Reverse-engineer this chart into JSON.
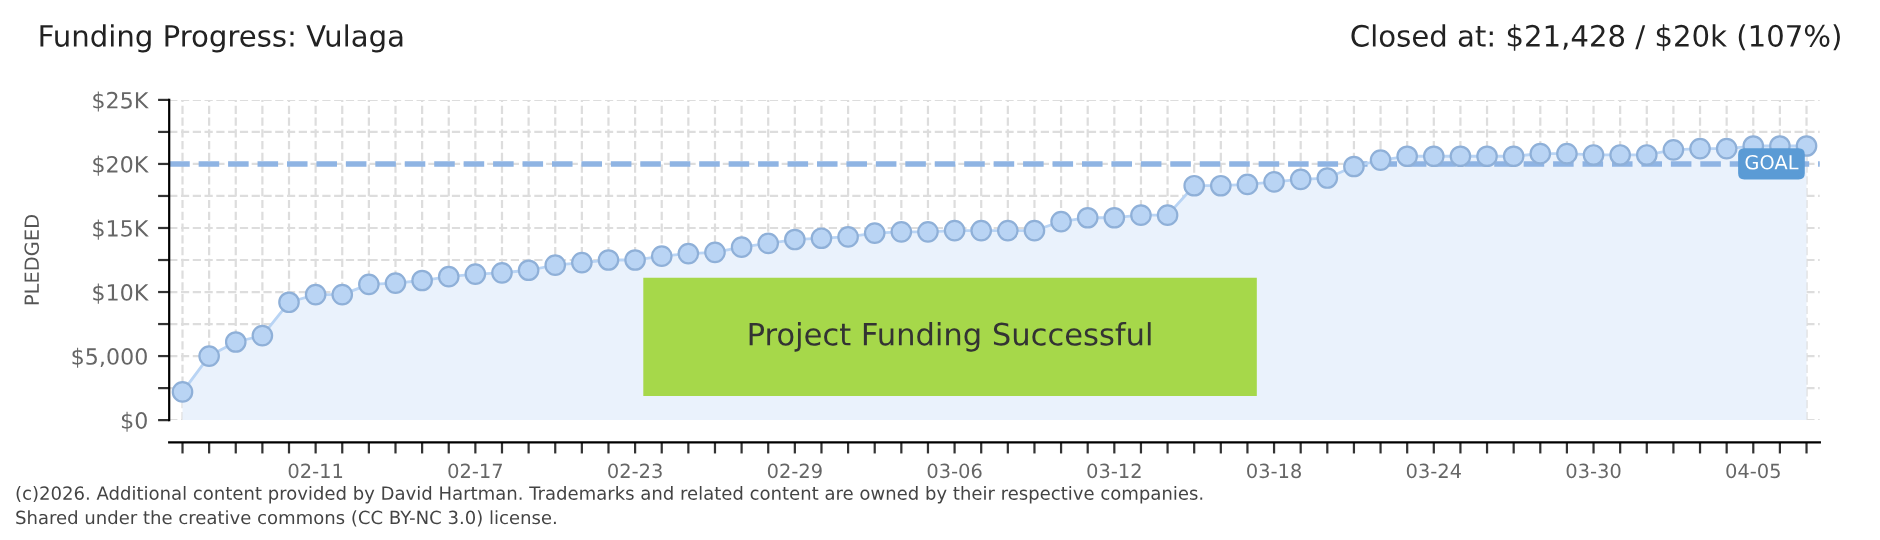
{
  "chart_data": {
    "type": "area",
    "title": "Funding Progress: Vulaga",
    "subtitle": "Closed at: $21,428 / $20k (107%)",
    "ylabel": "PLEDGED",
    "categories": [
      null,
      null,
      null,
      null,
      null,
      "02-11",
      null,
      null,
      null,
      null,
      null,
      "02-17",
      null,
      null,
      null,
      null,
      null,
      "02-23",
      null,
      null,
      null,
      null,
      null,
      "02-29",
      null,
      null,
      null,
      null,
      null,
      "03-06",
      null,
      null,
      null,
      null,
      null,
      "03-12",
      null,
      null,
      null,
      null,
      null,
      "03-18",
      null,
      null,
      null,
      null,
      null,
      "03-24",
      null,
      null,
      null,
      null,
      null,
      "03-30",
      null,
      null,
      null,
      null,
      null,
      "04-05",
      null,
      null
    ],
    "series": [
      {
        "color": "#b9d4f4",
        "values": [
          2200,
          5000,
          6100,
          6600,
          9200,
          9800,
          9800,
          10600,
          10700,
          10900,
          11200,
          11400,
          11500,
          11700,
          12100,
          12300,
          12500,
          12500,
          12800,
          13000,
          13100,
          13500,
          13800,
          14100,
          14200,
          14300,
          14600,
          14700,
          14700,
          14800,
          14800,
          14800,
          14800,
          15500,
          15800,
          15800,
          16000,
          16000,
          18300,
          18300,
          18400,
          18600,
          18800,
          18900,
          19800,
          20300,
          20600,
          20600,
          20600,
          20600,
          20600,
          20800,
          20800,
          20700,
          20700,
          20700,
          21100,
          21200,
          21200,
          21400,
          21400,
          21400
        ]
      }
    ],
    "ylim": [
      0,
      25000
    ],
    "yticks": [
      {
        "value": 0,
        "label": "$0"
      },
      {
        "value": 2500,
        "label": null
      },
      {
        "value": 5000,
        "label": "$5,000"
      },
      {
        "value": 7500,
        "label": null
      },
      {
        "value": 10000,
        "label": "$10K"
      },
      {
        "value": 12500,
        "label": null
      },
      {
        "value": 15000,
        "label": "$15K"
      },
      {
        "value": 17500,
        "label": null
      },
      {
        "value": 20000,
        "label": "$20K"
      },
      {
        "value": 22500,
        "label": null
      },
      {
        "value": 25000,
        "label": "$25K"
      }
    ],
    "ref_lines": [
      {
        "axis": "y",
        "value": 20000,
        "label": "GOAL",
        "color": "#8fb4e3",
        "line_style": "dashed"
      }
    ],
    "grid": true,
    "marker": "circle",
    "line_style": "solid",
    "legend": false,
    "annotations": [
      "Project Funding Successful",
      "(c)2026. Additional content provided by David Hartman. Trademarks and related content are owned by their respective companies.",
      "Shared under the creative commons (CC BY-NC 3.0) license."
    ]
  }
}
